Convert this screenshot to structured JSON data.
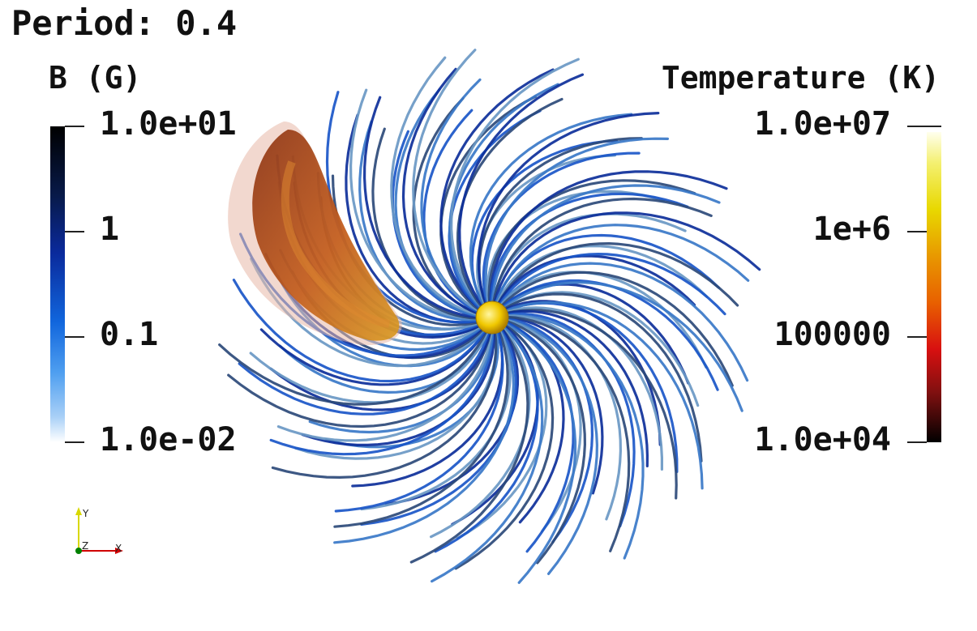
{
  "header": {
    "period_label": "Period: 0.4"
  },
  "colorbar_b": {
    "title": "B (G)",
    "ticks": [
      "1.0e+01",
      "1",
      "0.1",
      "1.0e-02"
    ],
    "colors": {
      "top": "#000000",
      "mid": "#0a2a9c",
      "bottom": "#ffffff"
    }
  },
  "colorbar_t": {
    "title": "Temperature (K)",
    "ticks": [
      "1.0e+07",
      "1e+6",
      "100000",
      "1.0e+04"
    ],
    "colors": {
      "top": "#ffffee",
      "mid": "#e86000",
      "bottom": "#000000"
    }
  },
  "axes_triad": {
    "x": "X",
    "y": "Y",
    "z": "Z"
  },
  "scene": {
    "star_color": "#f0c800",
    "plume_color": "#c0551a",
    "field_line_color": "#1a56c8"
  }
}
